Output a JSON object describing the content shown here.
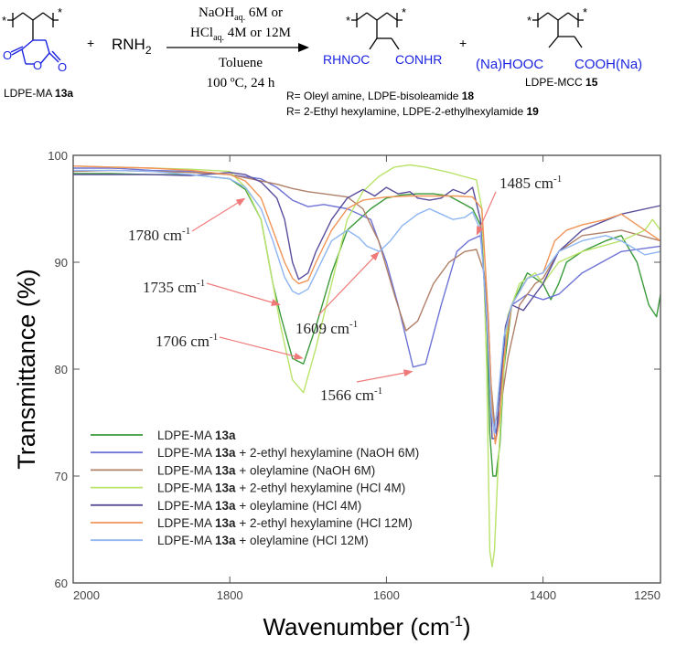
{
  "scheme": {
    "reactant_label": "LDPE-MA",
    "reactant_num": "13a",
    "plus1": "+",
    "amine": "RNH",
    "amine_sub": "2",
    "cond_line1_a": "NaOH",
    "cond_line1_sub": "aq.",
    "cond_line1_b": " 6M or",
    "cond_line2_a": "HCl",
    "cond_line2_sub": "aq.",
    "cond_line2_b": " 4M or 12M",
    "cond_line3": "Toluene",
    "cond_line4": "100 ºC, 24 h",
    "star": "*",
    "amide_left": "RHNOC",
    "amide_right": "CONHR",
    "plus2": "+",
    "acid_left": "(Na)HOOC",
    "acid_right": "COOH(Na)",
    "acid_label": "LDPE-MCC",
    "acid_num": "15",
    "ring_o1": "O",
    "ring_o2": "O",
    "ring_o3": "O",
    "r_line1_a": "R= Oleyl amine, LDPE-bisoleamide ",
    "r_line1_b": "18",
    "r_line2_a": "R= 2-Ethyl hexylamine, LDPE-2-ethylhexylamide ",
    "r_line2_b": "19"
  },
  "chart_data": {
    "type": "line",
    "xlabel": "Wavenumber (cm",
    "xlabel_sup": "-1",
    "xlabel_end": ")",
    "ylabel": "Transmittance (%)",
    "xlim": [
      2000,
      1250
    ],
    "ylim": [
      60,
      100
    ],
    "xticks": [
      2000,
      1800,
      1600,
      1400,
      1250
    ],
    "yticks": [
      60,
      70,
      80,
      90,
      100
    ],
    "legend_position": "bottom-left",
    "colors": {
      "frame": "#555555",
      "arrow": "#f07a7a",
      "s1": "#3a9a3a",
      "s2": "#6f74d6",
      "s3": "#b08068",
      "s4": "#b9e36a",
      "s5": "#5a4e9c",
      "s6": "#f09458",
      "s7": "#8fb6f2"
    },
    "annotations": [
      {
        "text": "1780 cm",
        "sup": "-1",
        "x": 1780,
        "y": 96.0
      },
      {
        "text": "1735 cm",
        "sup": "-1",
        "x": 1735,
        "y": 86.0
      },
      {
        "text": "1706 cm",
        "sup": "-1",
        "x": 1706,
        "y": 81.0
      },
      {
        "text": "1609 cm",
        "sup": "-1",
        "x": 1609,
        "y": 91.0
      },
      {
        "text": "1566 cm",
        "sup": "-1",
        "x": 1566,
        "y": 79.8
      },
      {
        "text": "1485 cm",
        "sup": "-1",
        "x": 1485,
        "y": 92.5
      }
    ],
    "series": [
      {
        "name": "LDPE-MA ",
        "bold": "13a",
        "suffix": "",
        "color_key": "s1",
        "x": [
          2000,
          1950,
          1900,
          1850,
          1800,
          1780,
          1760,
          1745,
          1735,
          1720,
          1706,
          1690,
          1670,
          1650,
          1620,
          1600,
          1580,
          1560,
          1540,
          1520,
          1500,
          1490,
          1480,
          1472,
          1468,
          1464,
          1460,
          1455,
          1450,
          1440,
          1420,
          1400,
          1390,
          1380,
          1370,
          1350,
          1320,
          1300,
          1280,
          1265,
          1255,
          1250
        ],
        "y": [
          98.3,
          98.3,
          98.2,
          98.2,
          97.8,
          96.8,
          94,
          88,
          85,
          81,
          80.5,
          84,
          89,
          93,
          95,
          96,
          96.3,
          96.4,
          96.4,
          96.2,
          95.4,
          95,
          93.5,
          85,
          74,
          70,
          70,
          73,
          80,
          86,
          89,
          88,
          86.5,
          88,
          90,
          91,
          92,
          92.5,
          90,
          86,
          84.9,
          87
        ]
      },
      {
        "name": "LDPE-MA ",
        "bold": "13a",
        "suffix": " + 2-ethyl hexylamine (NaOH 6M)",
        "color_key": "s2",
        "x": [
          2000,
          1950,
          1900,
          1850,
          1800,
          1760,
          1740,
          1720,
          1700,
          1680,
          1650,
          1620,
          1600,
          1585,
          1566,
          1550,
          1530,
          1510,
          1495,
          1480,
          1470,
          1465,
          1460,
          1455,
          1450,
          1440,
          1420,
          1400,
          1380,
          1350,
          1300,
          1250
        ],
        "y": [
          98.8,
          98.8,
          98.6,
          98.5,
          98.2,
          97.8,
          97,
          95.8,
          95.2,
          95.4,
          95,
          94,
          90,
          86,
          80.2,
          80.5,
          86,
          91,
          92,
          92.5,
          85,
          76,
          74,
          76,
          82,
          86,
          87,
          86.5,
          87,
          89,
          91,
          91.5
        ]
      },
      {
        "name": "LDPE-MA ",
        "bold": "13a",
        "suffix": " + oleylamine (NaOH 6M)",
        "color_key": "s3",
        "x": [
          2000,
          1950,
          1900,
          1850,
          1800,
          1760,
          1740,
          1720,
          1700,
          1680,
          1650,
          1630,
          1610,
          1590,
          1575,
          1560,
          1540,
          1520,
          1500,
          1485,
          1475,
          1468,
          1462,
          1455,
          1445,
          1430,
          1410,
          1400,
          1380,
          1350,
          1300,
          1250
        ],
        "y": [
          98.5,
          98.6,
          98.5,
          98.4,
          98.2,
          97.6,
          97.3,
          96.9,
          96.6,
          96.4,
          96.1,
          95,
          92,
          87,
          83.6,
          84.5,
          88,
          90,
          91,
          91.2,
          89,
          80,
          75,
          76,
          81,
          86,
          88,
          88.5,
          91,
          92.5,
          93,
          92
        ]
      },
      {
        "name": "LDPE-MA ",
        "bold": "13a",
        "suffix": " + 2-ethyl hexylamine (HCl 4M)",
        "color_key": "s4",
        "x": [
          2000,
          1950,
          1900,
          1850,
          1800,
          1780,
          1760,
          1745,
          1735,
          1720,
          1706,
          1690,
          1670,
          1650,
          1630,
          1610,
          1590,
          1570,
          1550,
          1520,
          1495,
          1485,
          1478,
          1472,
          1468,
          1465,
          1462,
          1458,
          1452,
          1445,
          1430,
          1410,
          1400,
          1380,
          1350,
          1300,
          1270,
          1260,
          1250
        ],
        "y": [
          99,
          98.9,
          98.8,
          98.7,
          98.5,
          97,
          94,
          88,
          84,
          79,
          77.8,
          82,
          88,
          94,
          96.6,
          98,
          98.9,
          99.1,
          98.9,
          98.4,
          97.9,
          97.7,
          95,
          80,
          63,
          61.5,
          63,
          70,
          78,
          85,
          88,
          89,
          88,
          90,
          91,
          92,
          93,
          94,
          93
        ]
      },
      {
        "name": "LDPE-MA ",
        "bold": "13a",
        "suffix": " + oleylamine (HCl 4M)",
        "color_key": "s5",
        "x": [
          2000,
          1950,
          1900,
          1850,
          1800,
          1780,
          1760,
          1740,
          1730,
          1720,
          1712,
          1700,
          1690,
          1670,
          1650,
          1630,
          1615,
          1600,
          1585,
          1570,
          1560,
          1545,
          1530,
          1515,
          1500,
          1490,
          1480,
          1470,
          1465,
          1460,
          1455,
          1448,
          1440,
          1425,
          1410,
          1400,
          1380,
          1350,
          1300,
          1250
        ],
        "y": [
          98.2,
          98.2,
          98.2,
          98.1,
          98.4,
          98.2,
          97.5,
          96,
          94,
          90,
          88.4,
          89,
          91,
          94,
          96,
          96.8,
          96.2,
          97,
          96.4,
          96.6,
          96,
          95.8,
          96,
          96.8,
          96.4,
          97,
          94,
          82,
          73.5,
          73.5,
          78,
          84,
          86,
          85.5,
          87,
          88,
          91,
          93,
          94.5,
          95.3
        ]
      },
      {
        "name": "LDPE-MA ",
        "bold": "13a",
        "suffix": " + 2-ethyl hexylamine (HCl 12M)",
        "color_key": "s6",
        "x": [
          2000,
          1950,
          1900,
          1850,
          1800,
          1780,
          1760,
          1745,
          1730,
          1720,
          1712,
          1700,
          1690,
          1670,
          1650,
          1630,
          1600,
          1570,
          1540,
          1510,
          1490,
          1478,
          1470,
          1465,
          1461,
          1456,
          1450,
          1440,
          1420,
          1400,
          1385,
          1370,
          1350,
          1320,
          1300,
          1270,
          1250
        ],
        "y": [
          99,
          98.9,
          98.8,
          98.6,
          98.2,
          97.6,
          96,
          93,
          90,
          88.5,
          88,
          88.3,
          90,
          93,
          95,
          95.8,
          96.1,
          96.2,
          96.2,
          96.2,
          96.1,
          95,
          85,
          76,
          73,
          75,
          81,
          86,
          88.5,
          89,
          92,
          93,
          93.5,
          94,
          94.5,
          93,
          92
        ]
      },
      {
        "name": "LDPE-MA ",
        "bold": "13a",
        "suffix": " + oleylamine (HCl 12M)",
        "color_key": "s7",
        "x": [
          2000,
          1950,
          1900,
          1850,
          1800,
          1780,
          1760,
          1745,
          1730,
          1720,
          1712,
          1700,
          1690,
          1670,
          1650,
          1635,
          1625,
          1609,
          1595,
          1580,
          1560,
          1545,
          1530,
          1515,
          1500,
          1490,
          1480,
          1472,
          1466,
          1462,
          1458,
          1450,
          1440,
          1420,
          1400,
          1380,
          1350,
          1320,
          1300,
          1270,
          1250
        ],
        "y": [
          98.6,
          98.6,
          98.5,
          98.2,
          97.8,
          97,
          95,
          92,
          88.6,
          87.3,
          87,
          87.5,
          89,
          92,
          93,
          92.3,
          91.5,
          91,
          92,
          93.4,
          94.5,
          95,
          94.5,
          94,
          94.2,
          94.7,
          93,
          85,
          76,
          74,
          77,
          83,
          86,
          88.5,
          89,
          91,
          92,
          92.5,
          92,
          90.7,
          91
        ]
      }
    ]
  }
}
